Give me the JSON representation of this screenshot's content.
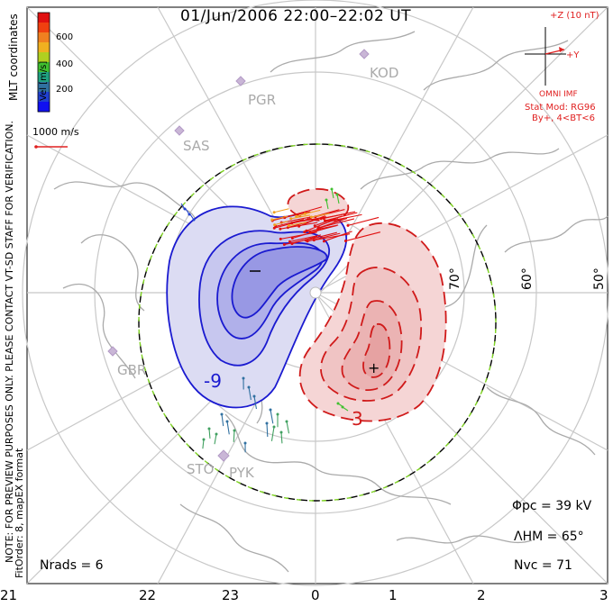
{
  "title": "01/Jun/2006 22:00–22:02 UT",
  "colorbar": {
    "label": "Vel [m/s]",
    "ticks": [
      "600",
      "400",
      "200"
    ],
    "colors": [
      "#e01010",
      "#f04010",
      "#f08020",
      "#f0b020",
      "#b0d020",
      "#40c030",
      "#20a080",
      "#3070a0",
      "#2040d0",
      "#1010f0"
    ]
  },
  "coordinates_label": "MLT coordinates",
  "reference_vector": "1000 m/s",
  "imf": {
    "z_label": "+Z (10 nT)",
    "y_label": "+Y",
    "source": "OMNI IMF",
    "model_line1": "Stat Mod: RG96",
    "model_line2": "By+, 4<BT<6"
  },
  "stations": [
    "KOD",
    "PGR",
    "SAS",
    "GBR",
    "STO",
    "PYK"
  ],
  "latitude_labels": [
    "70°",
    "60°",
    "50°"
  ],
  "vertical_note_line1": "NOTE: FOR PREVIEW PURPOSES ONLY. PLEASE CONTACT VT-SD STAFF FOR VERIFICATION.",
  "vertical_note_line2": "FitOrder: 8, mapEX format",
  "stats": {
    "phi_pc": "Φpc = 39 kV",
    "lambda_hm": "ΛHM = 65°",
    "n_vc": "Nvc = 71",
    "n_rads": "Nrads = 6"
  },
  "contour_labels": {
    "neg_center": "−",
    "pos_center": "+",
    "neg_value": "-9",
    "pos_value": "3"
  },
  "mlt_ticks": [
    "21",
    "22",
    "23",
    "0",
    "1",
    "2",
    "3"
  ],
  "colors": {
    "negative_contour": "#1a1ad0",
    "positive_contour": "#d01a1a",
    "grid": "#c8c8c8",
    "coast": "#aaaaaa",
    "boundary_green": "#7ed321"
  }
}
